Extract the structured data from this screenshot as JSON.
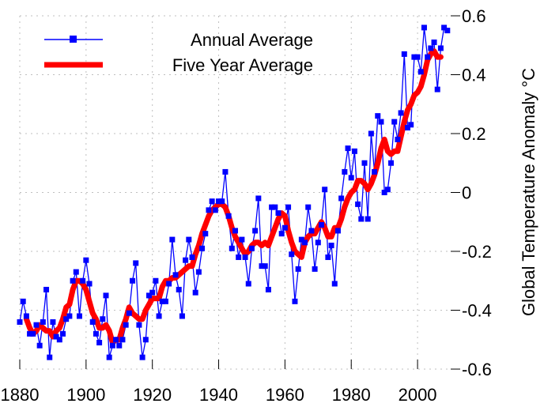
{
  "chart_data": {
    "type": "line",
    "title": "",
    "xlabel": "",
    "ylabel": "Global Temperature Anomaly °C",
    "xlim": [
      1880,
      2010
    ],
    "ylim": [
      -0.6,
      0.6
    ],
    "x_ticks": [
      1880,
      1900,
      1920,
      1940,
      1960,
      1980,
      2000
    ],
    "x_tick_labels": [
      "1880",
      "1900",
      "1920",
      "1940",
      "1960",
      "1980",
      "2000"
    ],
    "y_ticks": [
      0.6,
      0.4,
      0.2,
      0,
      -0.2,
      -0.4,
      -0.6
    ],
    "y_tick_labels": [
      "0.6",
      "0.4",
      "0.2",
      "0",
      "-0.2",
      "-0.4",
      "-0.6"
    ],
    "grid": true,
    "legend_position": "top-left",
    "colors": {
      "annual": "#0000ff",
      "five_year": "#ff0000",
      "grid": "#bfbfbf"
    },
    "series": [
      {
        "name": "Annual Average",
        "x": [
          1880,
          1881,
          1882,
          1883,
          1884,
          1885,
          1886,
          1887,
          1888,
          1889,
          1890,
          1891,
          1892,
          1893,
          1894,
          1895,
          1896,
          1897,
          1898,
          1899,
          1900,
          1901,
          1902,
          1903,
          1904,
          1905,
          1906,
          1907,
          1908,
          1909,
          1910,
          1911,
          1912,
          1913,
          1914,
          1915,
          1916,
          1917,
          1918,
          1919,
          1920,
          1921,
          1922,
          1923,
          1924,
          1925,
          1926,
          1927,
          1928,
          1929,
          1930,
          1931,
          1932,
          1933,
          1934,
          1935,
          1936,
          1937,
          1938,
          1939,
          1940,
          1941,
          1942,
          1943,
          1944,
          1945,
          1946,
          1947,
          1948,
          1949,
          1950,
          1951,
          1952,
          1953,
          1954,
          1955,
          1956,
          1957,
          1958,
          1959,
          1960,
          1961,
          1962,
          1963,
          1964,
          1965,
          1966,
          1967,
          1968,
          1969,
          1970,
          1971,
          1972,
          1973,
          1974,
          1975,
          1976,
          1977,
          1978,
          1979,
          1980,
          1981,
          1982,
          1983,
          1984,
          1985,
          1986,
          1987,
          1988,
          1989,
          1990,
          1991,
          1992,
          1993,
          1994,
          1995,
          1996,
          1997,
          1998,
          1999,
          2000,
          2001,
          2002,
          2003,
          2004,
          2005,
          2006,
          2007,
          2008,
          2009
        ],
        "values": [
          -0.44,
          -0.37,
          -0.42,
          -0.48,
          -0.48,
          -0.45,
          -0.52,
          -0.44,
          -0.33,
          -0.56,
          -0.44,
          -0.49,
          -0.5,
          -0.48,
          -0.43,
          -0.42,
          -0.3,
          -0.27,
          -0.42,
          -0.3,
          -0.23,
          -0.31,
          -0.44,
          -0.48,
          -0.51,
          -0.43,
          -0.35,
          -0.56,
          -0.52,
          -0.5,
          -0.52,
          -0.5,
          -0.45,
          -0.41,
          -0.3,
          -0.24,
          -0.45,
          -0.56,
          -0.5,
          -0.35,
          -0.34,
          -0.3,
          -0.42,
          -0.37,
          -0.37,
          -0.31,
          -0.16,
          -0.28,
          -0.33,
          -0.42,
          -0.23,
          -0.16,
          -0.22,
          -0.34,
          -0.27,
          -0.19,
          -0.14,
          -0.06,
          -0.03,
          -0.06,
          -0.03,
          -0.03,
          0.07,
          -0.08,
          -0.19,
          -0.13,
          -0.22,
          -0.16,
          -0.22,
          -0.31,
          -0.19,
          -0.13,
          -0.02,
          -0.25,
          -0.25,
          -0.33,
          -0.05,
          -0.05,
          -0.07,
          -0.14,
          -0.12,
          -0.05,
          -0.21,
          -0.37,
          -0.26,
          -0.16,
          -0.17,
          -0.05,
          -0.13,
          -0.26,
          -0.17,
          -0.11,
          0.01,
          -0.22,
          -0.18,
          -0.31,
          -0.13,
          -0.02,
          0.07,
          0.15,
          0.05,
          0.14,
          -0.04,
          -0.09,
          0.1,
          -0.09,
          0.2,
          0.07,
          0.26,
          0.24,
          0.0,
          0.01,
          0.1,
          0.24,
          0.18,
          0.27,
          0.47,
          0.22,
          0.23,
          0.46,
          0.46,
          0.41,
          0.56,
          0.46,
          0.49,
          0.51,
          0.35,
          0.49,
          0.56,
          0.55
        ]
      },
      {
        "name": "Five Year Average",
        "x": [
          1882,
          1883,
          1884,
          1885,
          1886,
          1887,
          1888,
          1889,
          1890,
          1891,
          1892,
          1893,
          1894,
          1895,
          1896,
          1897,
          1898,
          1899,
          1900,
          1901,
          1902,
          1903,
          1904,
          1905,
          1906,
          1907,
          1908,
          1909,
          1910,
          1911,
          1912,
          1913,
          1914,
          1915,
          1916,
          1917,
          1918,
          1919,
          1920,
          1921,
          1922,
          1923,
          1924,
          1925,
          1926,
          1927,
          1928,
          1929,
          1930,
          1931,
          1932,
          1933,
          1934,
          1935,
          1936,
          1937,
          1938,
          1939,
          1940,
          1941,
          1942,
          1943,
          1944,
          1945,
          1946,
          1947,
          1948,
          1949,
          1950,
          1951,
          1952,
          1953,
          1954,
          1955,
          1956,
          1957,
          1958,
          1959,
          1960,
          1961,
          1962,
          1963,
          1964,
          1965,
          1966,
          1967,
          1968,
          1969,
          1970,
          1971,
          1972,
          1973,
          1974,
          1975,
          1976,
          1977,
          1978,
          1979,
          1980,
          1981,
          1982,
          1983,
          1984,
          1985,
          1986,
          1987,
          1988,
          1989,
          1990,
          1991,
          1992,
          1993,
          1994,
          1995,
          1996,
          1997,
          1998,
          1999,
          2000,
          2001,
          2002,
          2003,
          2004,
          2005,
          2006,
          2007
        ],
        "values": [
          -0.43,
          -0.46,
          -0.48,
          -0.47,
          -0.45,
          -0.46,
          -0.47,
          -0.47,
          -0.49,
          -0.47,
          -0.46,
          -0.43,
          -0.39,
          -0.38,
          -0.33,
          -0.3,
          -0.3,
          -0.31,
          -0.33,
          -0.37,
          -0.41,
          -0.43,
          -0.46,
          -0.46,
          -0.45,
          -0.47,
          -0.51,
          -0.5,
          -0.5,
          -0.46,
          -0.43,
          -0.39,
          -0.41,
          -0.42,
          -0.43,
          -0.43,
          -0.4,
          -0.38,
          -0.36,
          -0.36,
          -0.36,
          -0.32,
          -0.3,
          -0.3,
          -0.29,
          -0.29,
          -0.28,
          -0.27,
          -0.26,
          -0.25,
          -0.25,
          -0.21,
          -0.18,
          -0.14,
          -0.11,
          -0.08,
          -0.06,
          -0.05,
          -0.04,
          -0.04,
          -0.05,
          -0.08,
          -0.12,
          -0.15,
          -0.17,
          -0.19,
          -0.21,
          -0.2,
          -0.18,
          -0.17,
          -0.17,
          -0.18,
          -0.17,
          -0.18,
          -0.15,
          -0.12,
          -0.09,
          -0.07,
          -0.08,
          -0.13,
          -0.17,
          -0.2,
          -0.21,
          -0.22,
          -0.17,
          -0.15,
          -0.14,
          -0.14,
          -0.12,
          -0.1,
          -0.12,
          -0.15,
          -0.15,
          -0.12,
          -0.12,
          -0.09,
          -0.05,
          -0.02,
          0.0,
          0.01,
          0.04,
          0.04,
          0.03,
          0.01,
          0.03,
          0.06,
          0.1,
          0.15,
          0.18,
          0.14,
          0.13,
          0.14,
          0.14,
          0.19,
          0.24,
          0.28,
          0.3,
          0.33,
          0.34,
          0.36,
          0.4,
          0.45,
          0.47,
          0.48,
          0.46,
          0.46
        ]
      }
    ]
  }
}
